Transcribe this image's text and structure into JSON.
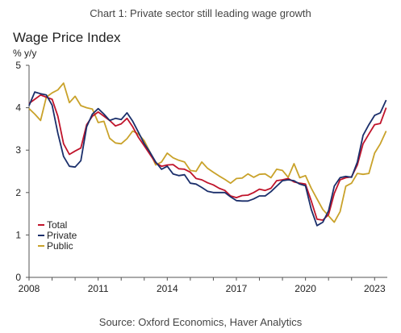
{
  "caption": "Chart 1: Private sector still leading wage growth",
  "source": "Source: Oxford Economics, Haver Analytics",
  "chart_data": {
    "type": "line",
    "title": "Wage Price Index",
    "ylabel": "% y/y",
    "xlabel": "",
    "xlim": [
      2008.0,
      2023.55
    ],
    "ylim": [
      0,
      5
    ],
    "x_ticks": [
      "2008",
      "2011",
      "2014",
      "2017",
      "2020",
      "2023"
    ],
    "y_ticks": [
      "0",
      "1",
      "2",
      "3",
      "4",
      "5"
    ],
    "grid": false,
    "legend": "bottom-left",
    "series": [
      {
        "name": "Total",
        "color": "#c0142b",
        "points": [
          [
            2008.0,
            4.1
          ],
          [
            2008.25,
            4.2
          ],
          [
            2008.5,
            4.3
          ],
          [
            2008.75,
            4.25
          ],
          [
            2009.0,
            4.2
          ],
          [
            2009.25,
            3.8
          ],
          [
            2009.5,
            3.15
          ],
          [
            2009.75,
            2.9
          ],
          [
            2010.0,
            2.98
          ],
          [
            2010.25,
            3.05
          ],
          [
            2010.5,
            3.6
          ],
          [
            2010.75,
            3.8
          ],
          [
            2011.0,
            3.9
          ],
          [
            2011.25,
            3.8
          ],
          [
            2011.5,
            3.7
          ],
          [
            2011.75,
            3.57
          ],
          [
            2012.0,
            3.62
          ],
          [
            2012.25,
            3.75
          ],
          [
            2012.5,
            3.55
          ],
          [
            2012.75,
            3.3
          ],
          [
            2013.0,
            3.1
          ],
          [
            2013.25,
            2.9
          ],
          [
            2013.5,
            2.7
          ],
          [
            2013.75,
            2.62
          ],
          [
            2014.0,
            2.65
          ],
          [
            2014.25,
            2.66
          ],
          [
            2014.5,
            2.56
          ],
          [
            2014.75,
            2.55
          ],
          [
            2015.0,
            2.48
          ],
          [
            2015.25,
            2.33
          ],
          [
            2015.5,
            2.3
          ],
          [
            2015.75,
            2.23
          ],
          [
            2016.0,
            2.18
          ],
          [
            2016.25,
            2.1
          ],
          [
            2016.5,
            2.05
          ],
          [
            2016.75,
            1.92
          ],
          [
            2017.0,
            1.88
          ],
          [
            2017.25,
            1.93
          ],
          [
            2017.5,
            1.94
          ],
          [
            2017.75,
            2.0
          ],
          [
            2018.0,
            2.08
          ],
          [
            2018.25,
            2.05
          ],
          [
            2018.5,
            2.1
          ],
          [
            2018.75,
            2.28
          ],
          [
            2019.0,
            2.3
          ],
          [
            2019.25,
            2.33
          ],
          [
            2019.5,
            2.25
          ],
          [
            2019.75,
            2.22
          ],
          [
            2020.0,
            2.2
          ],
          [
            2020.25,
            1.8
          ],
          [
            2020.5,
            1.37
          ],
          [
            2020.75,
            1.35
          ],
          [
            2021.0,
            1.48
          ],
          [
            2021.25,
            1.98
          ],
          [
            2021.5,
            2.3
          ],
          [
            2021.75,
            2.35
          ],
          [
            2022.0,
            2.37
          ],
          [
            2022.25,
            2.65
          ],
          [
            2022.5,
            3.15
          ],
          [
            2022.75,
            3.38
          ],
          [
            2023.0,
            3.6
          ],
          [
            2023.25,
            3.63
          ],
          [
            2023.5,
            4.0
          ]
        ]
      },
      {
        "name": "Private",
        "color": "#1b2f6b",
        "points": [
          [
            2008.0,
            4.05
          ],
          [
            2008.25,
            4.37
          ],
          [
            2008.5,
            4.33
          ],
          [
            2008.75,
            4.3
          ],
          [
            2009.0,
            4.06
          ],
          [
            2009.25,
            3.4
          ],
          [
            2009.5,
            2.85
          ],
          [
            2009.75,
            2.62
          ],
          [
            2010.0,
            2.6
          ],
          [
            2010.25,
            2.75
          ],
          [
            2010.5,
            3.55
          ],
          [
            2010.75,
            3.85
          ],
          [
            2011.0,
            3.98
          ],
          [
            2011.25,
            3.85
          ],
          [
            2011.5,
            3.7
          ],
          [
            2011.75,
            3.75
          ],
          [
            2012.0,
            3.72
          ],
          [
            2012.25,
            3.88
          ],
          [
            2012.5,
            3.68
          ],
          [
            2012.75,
            3.42
          ],
          [
            2013.0,
            3.15
          ],
          [
            2013.25,
            2.95
          ],
          [
            2013.5,
            2.72
          ],
          [
            2013.75,
            2.55
          ],
          [
            2014.0,
            2.62
          ],
          [
            2014.25,
            2.44
          ],
          [
            2014.5,
            2.4
          ],
          [
            2014.75,
            2.42
          ],
          [
            2015.0,
            2.22
          ],
          [
            2015.25,
            2.2
          ],
          [
            2015.5,
            2.12
          ],
          [
            2015.75,
            2.03
          ],
          [
            2016.0,
            2.0
          ],
          [
            2016.25,
            2.0
          ],
          [
            2016.5,
            2.0
          ],
          [
            2016.75,
            1.9
          ],
          [
            2017.0,
            1.81
          ],
          [
            2017.25,
            1.8
          ],
          [
            2017.5,
            1.8
          ],
          [
            2017.75,
            1.85
          ],
          [
            2018.0,
            1.92
          ],
          [
            2018.25,
            1.92
          ],
          [
            2018.5,
            2.02
          ],
          [
            2018.75,
            2.15
          ],
          [
            2019.0,
            2.28
          ],
          [
            2019.25,
            2.3
          ],
          [
            2019.5,
            2.28
          ],
          [
            2019.75,
            2.2
          ],
          [
            2020.0,
            2.16
          ],
          [
            2020.25,
            1.6
          ],
          [
            2020.5,
            1.22
          ],
          [
            2020.75,
            1.3
          ],
          [
            2021.0,
            1.57
          ],
          [
            2021.25,
            2.15
          ],
          [
            2021.5,
            2.35
          ],
          [
            2021.75,
            2.38
          ],
          [
            2022.0,
            2.36
          ],
          [
            2022.25,
            2.72
          ],
          [
            2022.5,
            3.35
          ],
          [
            2022.75,
            3.6
          ],
          [
            2023.0,
            3.82
          ],
          [
            2023.25,
            3.88
          ],
          [
            2023.5,
            4.18
          ]
        ]
      },
      {
        "name": "Public",
        "color": "#c9a22a",
        "points": [
          [
            2008.0,
            3.98
          ],
          [
            2008.25,
            3.85
          ],
          [
            2008.5,
            3.7
          ],
          [
            2008.75,
            4.25
          ],
          [
            2009.0,
            4.35
          ],
          [
            2009.25,
            4.42
          ],
          [
            2009.5,
            4.58
          ],
          [
            2009.75,
            4.12
          ],
          [
            2010.0,
            4.27
          ],
          [
            2010.25,
            4.05
          ],
          [
            2010.5,
            4.0
          ],
          [
            2010.75,
            3.97
          ],
          [
            2011.0,
            3.65
          ],
          [
            2011.25,
            3.68
          ],
          [
            2011.5,
            3.28
          ],
          [
            2011.75,
            3.17
          ],
          [
            2012.0,
            3.15
          ],
          [
            2012.25,
            3.27
          ],
          [
            2012.5,
            3.45
          ],
          [
            2012.75,
            3.38
          ],
          [
            2013.0,
            3.22
          ],
          [
            2013.25,
            2.95
          ],
          [
            2013.5,
            2.65
          ],
          [
            2013.75,
            2.72
          ],
          [
            2014.0,
            2.93
          ],
          [
            2014.25,
            2.82
          ],
          [
            2014.5,
            2.76
          ],
          [
            2014.75,
            2.72
          ],
          [
            2015.0,
            2.52
          ],
          [
            2015.25,
            2.5
          ],
          [
            2015.5,
            2.72
          ],
          [
            2015.75,
            2.57
          ],
          [
            2016.0,
            2.48
          ],
          [
            2016.25,
            2.39
          ],
          [
            2016.5,
            2.31
          ],
          [
            2016.75,
            2.22
          ],
          [
            2017.0,
            2.33
          ],
          [
            2017.25,
            2.34
          ],
          [
            2017.5,
            2.44
          ],
          [
            2017.75,
            2.36
          ],
          [
            2018.0,
            2.43
          ],
          [
            2018.25,
            2.44
          ],
          [
            2018.5,
            2.35
          ],
          [
            2018.75,
            2.55
          ],
          [
            2019.0,
            2.52
          ],
          [
            2019.25,
            2.36
          ],
          [
            2019.5,
            2.68
          ],
          [
            2019.75,
            2.35
          ],
          [
            2020.0,
            2.4
          ],
          [
            2020.25,
            2.1
          ],
          [
            2020.5,
            1.85
          ],
          [
            2020.75,
            1.6
          ],
          [
            2021.0,
            1.45
          ],
          [
            2021.25,
            1.3
          ],
          [
            2021.5,
            1.55
          ],
          [
            2021.75,
            2.15
          ],
          [
            2022.0,
            2.22
          ],
          [
            2022.25,
            2.45
          ],
          [
            2022.5,
            2.43
          ],
          [
            2022.75,
            2.45
          ],
          [
            2023.0,
            2.93
          ],
          [
            2023.25,
            3.15
          ],
          [
            2023.5,
            3.45
          ]
        ]
      }
    ]
  }
}
